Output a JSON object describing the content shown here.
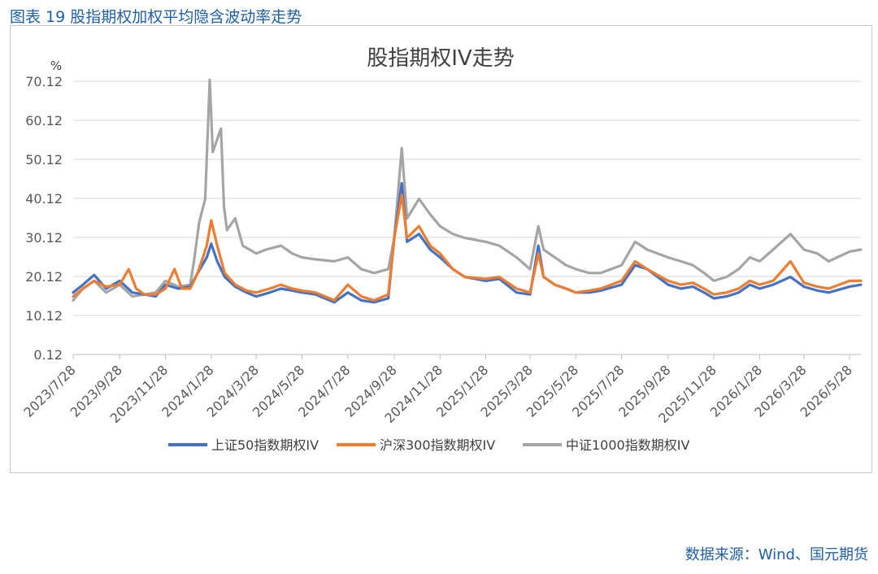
{
  "caption": "图表 19 股指期权加权平均隐含波动率走势",
  "source": "数据来源：Wind、国元期货",
  "chart_data": {
    "type": "line",
    "title": "股指期权IV走势",
    "ylabel": "%",
    "xlabel": "",
    "ylim": [
      0.12,
      70.12
    ],
    "yticks": [
      "0.12",
      "10.12",
      "20.12",
      "30.12",
      "40.12",
      "50.12",
      "60.12",
      "70.12"
    ],
    "xlim": [
      "2023/7/28",
      "2026/6/12"
    ],
    "xticks": [
      "2023/7/28",
      "2023/9/28",
      "2023/11/28",
      "2024/1/28",
      "2024/3/28",
      "2024/5/28",
      "2024/7/28",
      "2024/9/28",
      "2024/11/28",
      "2025/1/28",
      "2025/3/28",
      "2025/5/28",
      "2025/7/28",
      "2025/9/28",
      "2025/11/28",
      "2026/1/28",
      "2026/3/28",
      "2026/5/28"
    ],
    "grid": "horizontal",
    "legend_position": "bottom",
    "colors": {
      "sz50": "#4472c4",
      "hs300": "#ed7d31",
      "zz1000": "#a5a5a5"
    },
    "series": [
      {
        "name": "上证50指数期权IV",
        "key": "sz50",
        "points": [
          [
            "2023/7/28",
            16
          ],
          [
            "2023/8/10",
            18
          ],
          [
            "2023/8/25",
            20.5
          ],
          [
            "2023/9/10",
            17
          ],
          [
            "2023/9/28",
            19
          ],
          [
            "2023/10/15",
            16
          ],
          [
            "2023/10/31",
            15.5
          ],
          [
            "2023/11/15",
            15
          ],
          [
            "2023/11/28",
            18
          ],
          [
            "2023/12/15",
            17
          ],
          [
            "2023/12/31",
            17.5
          ],
          [
            "2024/1/10",
            21
          ],
          [
            "2024/1/22",
            25
          ],
          [
            "2024/1/28",
            28.5
          ],
          [
            "2024/2/5",
            24
          ],
          [
            "2024/2/15",
            20
          ],
          [
            "2024/2/29",
            17.5
          ],
          [
            "2024/3/15",
            16
          ],
          [
            "2024/3/28",
            15
          ],
          [
            "2024/4/15",
            16
          ],
          [
            "2024/4/30",
            17
          ],
          [
            "2024/5/15",
            16.5
          ],
          [
            "2024/5/28",
            16
          ],
          [
            "2024/6/15",
            15.5
          ],
          [
            "2024/7/10",
            13.5
          ],
          [
            "2024/7/28",
            16
          ],
          [
            "2024/8/15",
            14
          ],
          [
            "2024/9/1",
            13.5
          ],
          [
            "2024/9/20",
            14.5
          ],
          [
            "2024/9/28",
            30
          ],
          [
            "2024/10/8",
            44
          ],
          [
            "2024/10/15",
            29
          ],
          [
            "2024/10/31",
            31
          ],
          [
            "2024/11/15",
            27
          ],
          [
            "2024/11/28",
            25
          ],
          [
            "2024/12/15",
            22
          ],
          [
            "2024/12/31",
            20
          ],
          [
            "2025/1/28",
            19
          ],
          [
            "2025/2/15",
            19.5
          ],
          [
            "2025/3/10",
            16
          ],
          [
            "2025/3/28",
            15.5
          ],
          [
            "2025/4/8",
            28
          ],
          [
            "2025/4/15",
            20
          ],
          [
            "2025/4/30",
            18
          ],
          [
            "2025/5/15",
            17
          ],
          [
            "2025/5/28",
            16
          ],
          [
            "2025/6/15",
            16
          ],
          [
            "2025/6/30",
            16.5
          ],
          [
            "2025/7/28",
            18
          ],
          [
            "2025/8/15",
            23
          ],
          [
            "2025/8/31",
            22
          ],
          [
            "2025/9/28",
            18
          ],
          [
            "2025/10/15",
            17
          ],
          [
            "2025/10/31",
            17.5
          ],
          [
            "2025/11/15",
            16
          ],
          [
            "2025/11/28",
            14.5
          ],
          [
            "2025/12/15",
            15
          ],
          [
            "2025/12/31",
            16
          ],
          [
            "2026/1/15",
            18
          ],
          [
            "2026/1/28",
            17
          ],
          [
            "2026/2/15",
            18
          ],
          [
            "2026/3/10",
            20
          ],
          [
            "2026/3/28",
            17.5
          ],
          [
            "2026/4/15",
            16.5
          ],
          [
            "2026/4/30",
            16
          ],
          [
            "2026/5/28",
            17.5
          ],
          [
            "2026/6/12",
            18
          ]
        ]
      },
      {
        "name": "沪深300指数期权IV",
        "key": "hs300",
        "points": [
          [
            "2023/7/28",
            15
          ],
          [
            "2023/8/10",
            17
          ],
          [
            "2023/8/25",
            19
          ],
          [
            "2023/9/10",
            17.5
          ],
          [
            "2023/9/28",
            18
          ],
          [
            "2023/10/10",
            22
          ],
          [
            "2023/10/20",
            17
          ],
          [
            "2023/10/31",
            15.5
          ],
          [
            "2023/11/15",
            15.5
          ],
          [
            "2023/11/28",
            17
          ],
          [
            "2023/12/10",
            22
          ],
          [
            "2023/12/20",
            17
          ],
          [
            "2023/12/31",
            17
          ],
          [
            "2024/1/10",
            21
          ],
          [
            "2024/1/22",
            28
          ],
          [
            "2024/1/28",
            34.5
          ],
          [
            "2024/2/5",
            28
          ],
          [
            "2024/2/15",
            21
          ],
          [
            "2024/2/29",
            18
          ],
          [
            "2024/3/15",
            16.5
          ],
          [
            "2024/3/28",
            16
          ],
          [
            "2024/4/15",
            17
          ],
          [
            "2024/4/30",
            18
          ],
          [
            "2024/5/15",
            17
          ],
          [
            "2024/5/28",
            16.5
          ],
          [
            "2024/6/15",
            16
          ],
          [
            "2024/7/10",
            14
          ],
          [
            "2024/7/28",
            18
          ],
          [
            "2024/8/15",
            15
          ],
          [
            "2024/9/1",
            14
          ],
          [
            "2024/9/20",
            15.5
          ],
          [
            "2024/9/28",
            30
          ],
          [
            "2024/10/8",
            41
          ],
          [
            "2024/10/15",
            30
          ],
          [
            "2024/10/31",
            33
          ],
          [
            "2024/11/15",
            28
          ],
          [
            "2024/11/28",
            26
          ],
          [
            "2024/12/15",
            22
          ],
          [
            "2024/12/31",
            20
          ],
          [
            "2025/1/28",
            19.5
          ],
          [
            "2025/2/15",
            20
          ],
          [
            "2025/3/10",
            17
          ],
          [
            "2025/3/28",
            16
          ],
          [
            "2025/4/8",
            26
          ],
          [
            "2025/4/15",
            20
          ],
          [
            "2025/4/30",
            18
          ],
          [
            "2025/5/15",
            17
          ],
          [
            "2025/5/28",
            16
          ],
          [
            "2025/6/15",
            16.5
          ],
          [
            "2025/6/30",
            17
          ],
          [
            "2025/7/28",
            19
          ],
          [
            "2025/8/15",
            24
          ],
          [
            "2025/8/31",
            22
          ],
          [
            "2025/9/28",
            19
          ],
          [
            "2025/10/15",
            18
          ],
          [
            "2025/10/31",
            18.5
          ],
          [
            "2025/11/15",
            17
          ],
          [
            "2025/11/28",
            15.5
          ],
          [
            "2025/12/15",
            16
          ],
          [
            "2025/12/31",
            17
          ],
          [
            "2026/1/15",
            19
          ],
          [
            "2026/1/28",
            18
          ],
          [
            "2026/2/15",
            19
          ],
          [
            "2026/3/10",
            24
          ],
          [
            "2026/3/28",
            18.5
          ],
          [
            "2026/4/15",
            17.5
          ],
          [
            "2026/4/30",
            17
          ],
          [
            "2026/5/28",
            19
          ],
          [
            "2026/6/12",
            19
          ]
        ]
      },
      {
        "name": "中证1000指数期权IV",
        "key": "zz1000",
        "points": [
          [
            "2023/7/28",
            14
          ],
          [
            "2023/8/10",
            17
          ],
          [
            "2023/8/25",
            19
          ],
          [
            "2023/9/10",
            16
          ],
          [
            "2023/9/28",
            18
          ],
          [
            "2023/10/15",
            15
          ],
          [
            "2023/10/31",
            15.5
          ],
          [
            "2023/11/15",
            16
          ],
          [
            "2023/11/28",
            19
          ],
          [
            "2023/12/15",
            17.5
          ],
          [
            "2023/12/31",
            18
          ],
          [
            "2024/1/5",
            24
          ],
          [
            "2024/1/12",
            34
          ],
          [
            "2024/1/20",
            40
          ],
          [
            "2024/1/26",
            70.5
          ],
          [
            "2024/1/30",
            52
          ],
          [
            "2024/2/10",
            58
          ],
          [
            "2024/2/14",
            38
          ],
          [
            "2024/2/18",
            32
          ],
          [
            "2024/2/29",
            35
          ],
          [
            "2024/3/10",
            28
          ],
          [
            "2024/3/28",
            26
          ],
          [
            "2024/4/10",
            27
          ],
          [
            "2024/4/30",
            28
          ],
          [
            "2024/5/15",
            26
          ],
          [
            "2024/5/28",
            25
          ],
          [
            "2024/6/15",
            24.5
          ],
          [
            "2024/7/10",
            24
          ],
          [
            "2024/7/28",
            25
          ],
          [
            "2024/8/15",
            22
          ],
          [
            "2024/9/1",
            21
          ],
          [
            "2024/9/20",
            22
          ],
          [
            "2024/9/28",
            30
          ],
          [
            "2024/10/8",
            53
          ],
          [
            "2024/10/15",
            35
          ],
          [
            "2024/10/31",
            40
          ],
          [
            "2024/11/15",
            36
          ],
          [
            "2024/11/28",
            33
          ],
          [
            "2024/12/15",
            31
          ],
          [
            "2024/12/31",
            30
          ],
          [
            "2025/1/28",
            29
          ],
          [
            "2025/2/15",
            28
          ],
          [
            "2025/3/10",
            25
          ],
          [
            "2025/3/28",
            22
          ],
          [
            "2025/4/8",
            33
          ],
          [
            "2025/4/15",
            27
          ],
          [
            "2025/4/30",
            25
          ],
          [
            "2025/5/15",
            23
          ],
          [
            "2025/5/28",
            22
          ],
          [
            "2025/6/15",
            21
          ],
          [
            "2025/6/30",
            21
          ],
          [
            "2025/7/28",
            23
          ],
          [
            "2025/8/15",
            29
          ],
          [
            "2025/8/31",
            27
          ],
          [
            "2025/9/28",
            25
          ],
          [
            "2025/10/15",
            24
          ],
          [
            "2025/10/31",
            23
          ],
          [
            "2025/11/15",
            21
          ],
          [
            "2025/11/28",
            19
          ],
          [
            "2025/12/15",
            20
          ],
          [
            "2025/12/31",
            22
          ],
          [
            "2026/1/15",
            25
          ],
          [
            "2026/1/28",
            24
          ],
          [
            "2026/2/15",
            27
          ],
          [
            "2026/3/10",
            31
          ],
          [
            "2026/3/28",
            27
          ],
          [
            "2026/4/15",
            26
          ],
          [
            "2026/4/30",
            24
          ],
          [
            "2026/5/28",
            26.5
          ],
          [
            "2026/6/12",
            27
          ]
        ]
      }
    ]
  }
}
